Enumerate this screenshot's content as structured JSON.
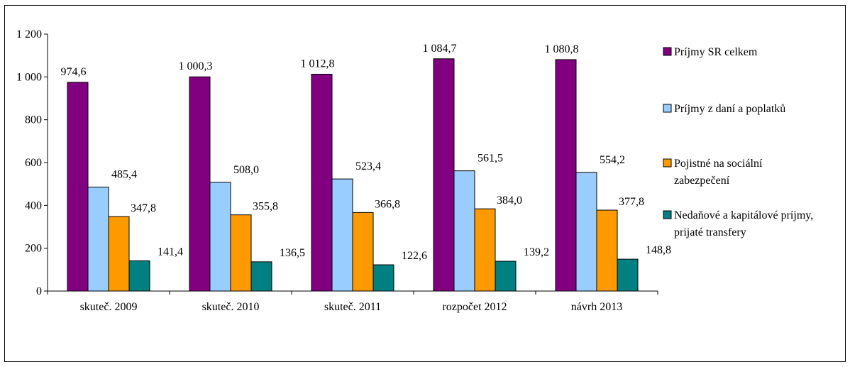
{
  "chart_data": {
    "type": "bar",
    "categories": [
      "skuteč. 2009",
      "skuteč. 2010",
      "skuteč. 2011",
      "rozpočet 2012",
      "návrh 2013"
    ],
    "series": [
      {
        "name": "Príjmy SR celkem",
        "color": "#800080",
        "values": [
          974.6,
          1000.3,
          1012.8,
          1084.7,
          1080.8
        ],
        "labels": [
          "974,6",
          "1 000,3",
          "1 012,8",
          "1 084,7",
          "1 080,8"
        ]
      },
      {
        "name": "Príjmy z daní a poplatků",
        "color": "#99CCFF",
        "values": [
          485.4,
          508.0,
          523.4,
          561.5,
          554.2
        ],
        "labels": [
          "485,4",
          "508,0",
          "523,4",
          "561,5",
          "554,2"
        ]
      },
      {
        "name": "Pojistné na sociální zabezpečení",
        "name_lines": [
          "Pojistné na sociální",
          "zabezpečení"
        ],
        "color": "#FF9900",
        "values": [
          347.8,
          355.8,
          366.8,
          384.0,
          377.8
        ],
        "labels": [
          "347,8",
          "355,8",
          "366,8",
          "384,0",
          "377,8"
        ]
      },
      {
        "name": "Nedaňové a kapitálové príjmy, prijaté transfery",
        "name_lines": [
          "Nedaňové a kapitálové príjmy,",
          "prijaté transfery"
        ],
        "color": "#008080",
        "values": [
          141.4,
          136.5,
          122.6,
          139.2,
          148.8
        ],
        "labels": [
          "141,4",
          "136,5",
          "122,6",
          "139,2",
          "148,8"
        ]
      }
    ],
    "y_ticks": [
      0,
      200,
      400,
      600,
      800,
      1000,
      1200
    ],
    "y_tick_labels": [
      "0",
      "200",
      "400",
      "600",
      "800",
      "1 000",
      "1 200"
    ],
    "ylim": [
      0,
      1200
    ],
    "grid": false,
    "legend": "right",
    "title": "",
    "xlabel": "",
    "ylabel": ""
  }
}
